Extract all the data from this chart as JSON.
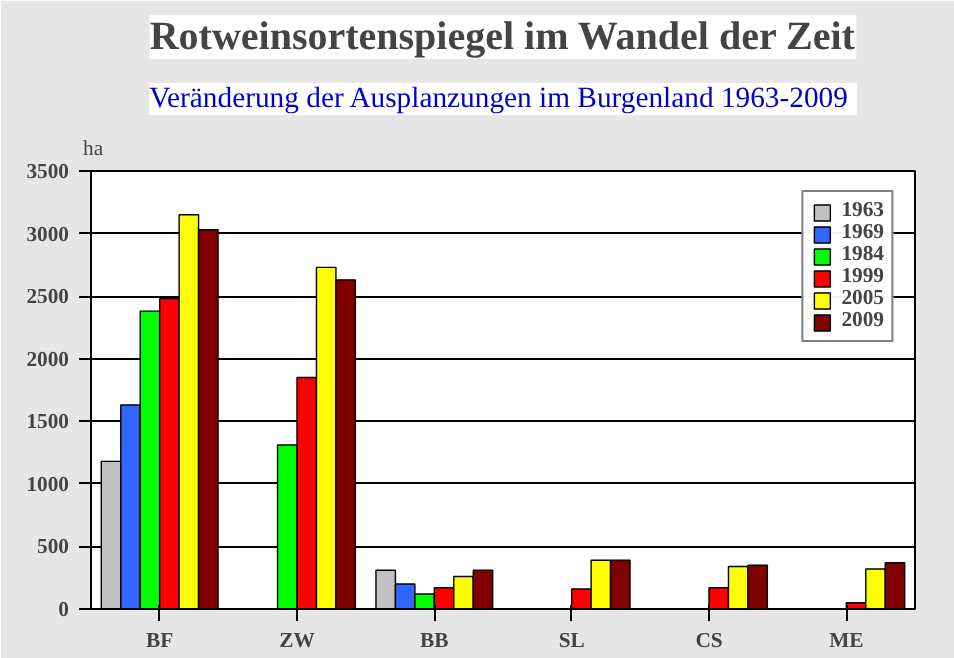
{
  "chart_data": {
    "type": "bar",
    "title": "Rotweinsortenspiegel im Wandel der Zeit",
    "subtitle": "Veränderung der Ausplanzungen im Burgenland  1963-2009",
    "ylabel": "ha",
    "categories": [
      "BF",
      "ZW",
      "BB",
      "SL",
      "CS",
      "ME"
    ],
    "series": [
      {
        "name": "1963",
        "color": "#c0c0c0",
        "values": [
          1180,
          null,
          310,
          null,
          null,
          null
        ]
      },
      {
        "name": "1969",
        "color": "#3366ff",
        "values": [
          1630,
          null,
          200,
          null,
          null,
          null
        ]
      },
      {
        "name": "1984",
        "color": "#00ff00",
        "values": [
          2380,
          1310,
          120,
          null,
          null,
          null
        ]
      },
      {
        "name": "1999",
        "color": "#ff0000",
        "values": [
          2480,
          1850,
          170,
          160,
          170,
          50
        ]
      },
      {
        "name": "2005",
        "color": "#ffff00",
        "values": [
          3150,
          2730,
          260,
          390,
          340,
          320
        ]
      },
      {
        "name": "2009",
        "color": "#800000",
        "values": [
          3030,
          2630,
          310,
          390,
          350,
          370
        ]
      }
    ],
    "ylim": [
      0,
      3500
    ],
    "yticks": [
      0,
      500,
      1000,
      1500,
      2000,
      2500,
      3000,
      3500
    ],
    "grid": "y",
    "legend": "top right"
  }
}
